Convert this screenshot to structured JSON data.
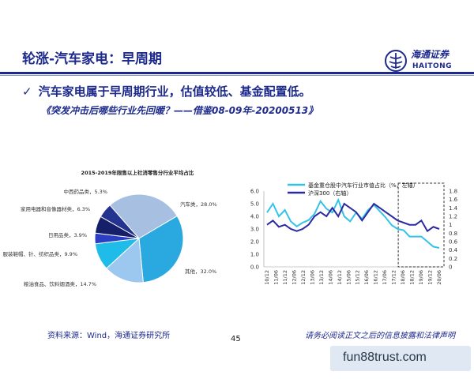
{
  "slide": {
    "title": "轮涨-汽车家电：早周期",
    "bullet": "汽车家电属于早周期行业，估值较低、基金配置低。",
    "subline": "《突发冲击后哪些行业先回暖？——借鉴08-09年-20200513》",
    "source": "资料来源：Wind，海通证券研究所",
    "page_number": "45",
    "disclaimer": "请务必阅读正文之后的信息披露和法律声明",
    "watermark": "fun88trust.com"
  },
  "logo": {
    "name_cn": "海通证券",
    "name_en": "HAITONG",
    "icon": "haitong-logo-icon",
    "color": "#1d2a8c"
  },
  "colors": {
    "brand": "#1d2a8c",
    "fund_line": "#33c3e8",
    "index_line": "#2b2aa0"
  },
  "chart_data": [
    {
      "type": "pie",
      "title": "2015-2019年限售以上社消零售分行业平均占比",
      "slices": [
        {
          "label": "汽车类",
          "value": 28.0,
          "display": "汽车类，28.0%",
          "color": "#a7bfe0"
        },
        {
          "label": "其他",
          "value": 32.0,
          "display": "其他，32.0%",
          "color": "#2aa8e0"
        },
        {
          "label": "粮油食品、饮料烟酒类",
          "value": 14.7,
          "display": "粮油食品、饮料烟酒类，14.7%",
          "color": "#9cc7ee"
        },
        {
          "label": "服装鞋帽、针、纺织品类",
          "value": 9.9,
          "display": "服装鞋帽、针、纺织品类，9.9%",
          "color": "#1fbcea"
        },
        {
          "label": "日用品类",
          "value": 3.9,
          "display": "日用品类，3.9%",
          "color": "#2a3fc4"
        },
        {
          "label": "家用电器和音像器材类",
          "value": 6.3,
          "display": "家用电器和音像器材类，6.3%",
          "color": "#16206a"
        },
        {
          "label": "中西药品类",
          "value": 5.3,
          "display": "中西药品类，5.3%",
          "color": "#243290"
        }
      ]
    },
    {
      "type": "line",
      "series": [
        {
          "name": "基金重仓股中汽车行业市值占比（%，左轴）",
          "axis": "left",
          "color": "#33c3e8",
          "values": [
            4.3,
            5.0,
            4.0,
            4.5,
            3.6,
            3.2,
            3.5,
            3.7,
            4.2,
            5.2,
            4.6,
            4.3,
            5.3,
            4.0,
            3.6,
            4.3,
            3.8,
            4.5,
            4.9,
            4.4,
            3.9,
            3.3,
            3.0,
            2.9,
            2.4,
            2.4,
            2.4,
            2.0,
            1.6,
            1.5
          ]
        },
        {
          "name": "沪深300（右轴）",
          "axis": "right",
          "color": "#2b2aa0",
          "values": [
            1.0,
            1.1,
            0.95,
            1.0,
            0.9,
            0.85,
            0.9,
            1.0,
            1.2,
            1.3,
            1.2,
            1.4,
            1.2,
            1.5,
            1.4,
            1.3,
            1.1,
            1.3,
            1.5,
            1.4,
            1.3,
            1.2,
            1.1,
            1.05,
            1.0,
            1.0,
            1.1,
            0.85,
            0.95,
            0.9
          ]
        }
      ],
      "x_tick_labels": [
        "10/12",
        "11/06",
        "11/12",
        "12/06",
        "12/12",
        "13/06",
        "13/12",
        "14/06",
        "14/12",
        "15/06",
        "15/12",
        "16/06",
        "16/12",
        "17/06",
        "17/12",
        "18/06",
        "18/12",
        "19/06",
        "19/12",
        "20/06"
      ],
      "y_left": {
        "ticks": [
          "0.0",
          "1.0",
          "2.0",
          "3.0",
          "4.0",
          "5.0",
          "6.0"
        ],
        "range": [
          0,
          6
        ]
      },
      "y_right": {
        "ticks": [
          "0",
          "0.2",
          "0.4",
          "0.6",
          "0.8",
          "1",
          "1.2",
          "1.4",
          "1.6",
          "1.8"
        ],
        "range": [
          0,
          1.8
        ]
      },
      "highlight": {
        "from_label": "18/06",
        "to_label": "20/06",
        "style": "dashed-box"
      }
    }
  ]
}
